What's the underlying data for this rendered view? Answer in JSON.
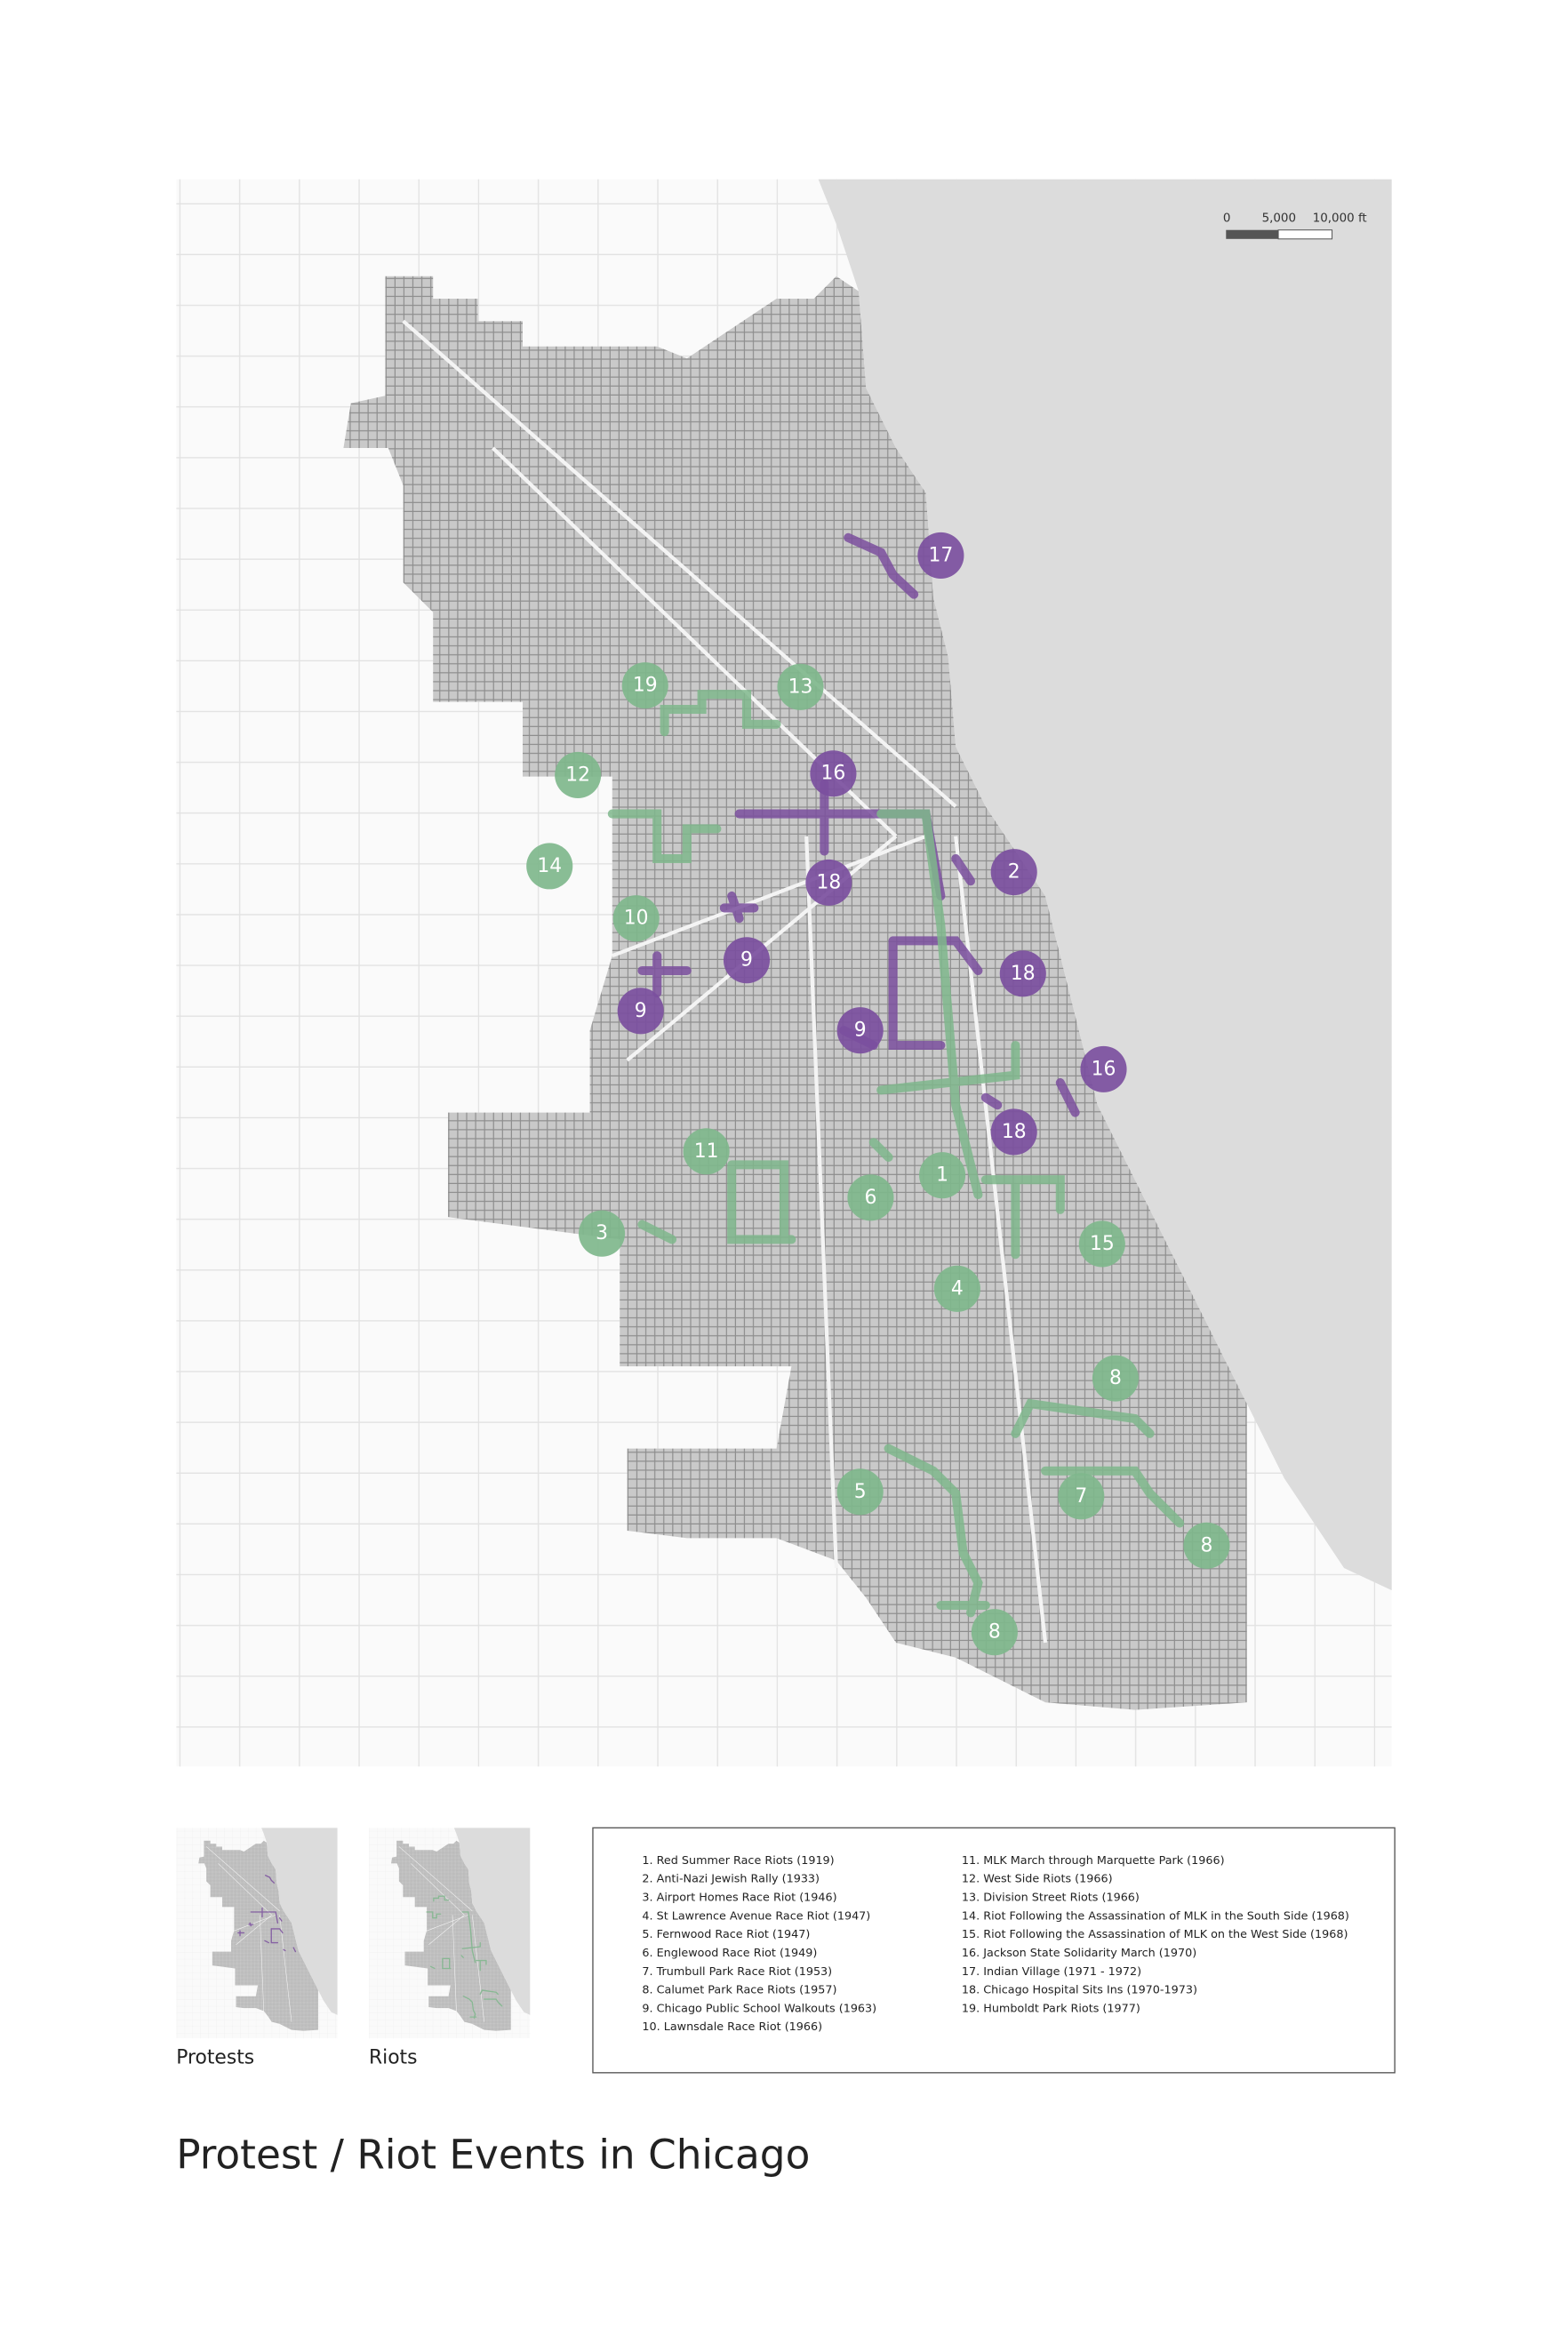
{
  "title": "Protest / Riot Events in Chicago",
  "scale_bar": {
    "labels": [
      "0",
      "5,000",
      "10,000 ft"
    ]
  },
  "inset_maps": [
    {
      "caption": "Protests",
      "color": "#7b4f9e"
    },
    {
      "caption": "Riots",
      "color": "#7fb78c"
    }
  ],
  "legend": {
    "items": [
      "1. Red Summer Race Riots (1919)",
      "2. Anti-Nazi Jewish Rally (1933)",
      "3. Airport Homes Race Riot (1946)",
      "4. St Lawrence Avenue Race Riot (1947)",
      "5. Fernwood Race Riot (1947)",
      "6. Englewood Race Riot (1949)",
      "7. Trumbull Park Race Riot (1953)",
      "8. Calumet Park Race Riots (1957)",
      "9. Chicago Public School Walkouts (1963)",
      "10. Lawnsdale Race Riot (1966)",
      "11. MLK March through Marquette Park (1966)",
      "12. West Side Riots (1966)",
      "13. Division Street Riots (1966)",
      "14. Riot Following the Assassination of MLK in the South Side (1968)",
      "15. Riot Following the Assassination of MLK on the West Side (1968)",
      "16. Jackson State Solidarity March (1970)",
      "17. Indian Village (1971 - 1972)",
      "18. Chicago Hospital Sits Ins (1970-1973)",
      "19. Humboldt Park Riots (1977)"
    ]
  },
  "markers": [
    {
      "label": "17",
      "kind": "protest"
    },
    {
      "label": "16",
      "kind": "protest"
    },
    {
      "label": "2",
      "kind": "protest"
    },
    {
      "label": "18",
      "kind": "protest"
    },
    {
      "label": "18",
      "kind": "protest"
    },
    {
      "label": "9",
      "kind": "protest"
    },
    {
      "label": "9",
      "kind": "protest"
    },
    {
      "label": "9",
      "kind": "protest"
    },
    {
      "label": "16",
      "kind": "protest"
    },
    {
      "label": "18",
      "kind": "protest"
    },
    {
      "label": "19",
      "kind": "riot"
    },
    {
      "label": "13",
      "kind": "riot"
    },
    {
      "label": "12",
      "kind": "riot"
    },
    {
      "label": "14",
      "kind": "riot"
    },
    {
      "label": "10",
      "kind": "riot"
    },
    {
      "label": "11",
      "kind": "riot"
    },
    {
      "label": "1",
      "kind": "riot"
    },
    {
      "label": "6",
      "kind": "riot"
    },
    {
      "label": "3",
      "kind": "riot"
    },
    {
      "label": "15",
      "kind": "riot"
    },
    {
      "label": "4",
      "kind": "riot"
    },
    {
      "label": "8",
      "kind": "riot"
    },
    {
      "label": "5",
      "kind": "riot"
    },
    {
      "label": "7",
      "kind": "riot"
    },
    {
      "label": "8",
      "kind": "riot"
    },
    {
      "label": "8",
      "kind": "riot"
    }
  ]
}
